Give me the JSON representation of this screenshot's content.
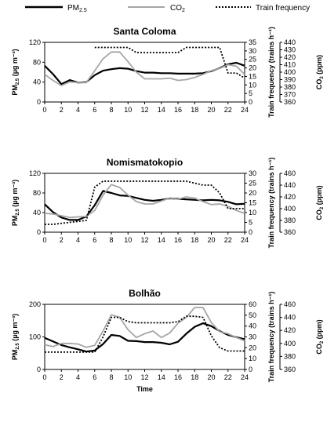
{
  "legend": [
    {
      "label": "PM2.5",
      "color": "#000000",
      "style": "solid"
    },
    {
      "label": "CO2",
      "color": "#a6a6a6",
      "style": "solid"
    },
    {
      "label": "Train frequency",
      "color": "#000000",
      "style": "dotted"
    }
  ],
  "chart_data": [
    {
      "type": "line",
      "title": "Santa Coloma",
      "xlabel": "",
      "ylabel": "PM2.5 (µg m⁻³)",
      "y2label": "Train frequency (trains h⁻¹)",
      "y3label": "CO2 (ppm)",
      "xlim": [
        0,
        24
      ],
      "xticks": [
        0,
        2,
        4,
        6,
        8,
        10,
        12,
        14,
        16,
        18,
        20,
        22,
        24
      ],
      "ylim": [
        0,
        120
      ],
      "yticks": [
        0,
        40,
        80,
        120
      ],
      "y2lim": [
        0,
        35
      ],
      "y2ticks": [
        0,
        5,
        10,
        15,
        20,
        25,
        30,
        35
      ],
      "y3lim": [
        360,
        440
      ],
      "y3ticks": [
        360,
        370,
        380,
        390,
        400,
        410,
        420,
        430,
        440
      ],
      "series": [
        {
          "name": "PM2.5",
          "axis": "left",
          "color": "#000000",
          "style": "solid",
          "x": [
            0,
            1,
            2,
            3,
            4,
            5,
            6,
            7,
            8,
            9,
            10,
            11,
            12,
            13,
            14,
            15,
            16,
            17,
            18,
            19,
            20,
            21,
            22,
            23,
            24
          ],
          "y": [
            73,
            56,
            36,
            44,
            39,
            40,
            54,
            63,
            66,
            68,
            67,
            62,
            59,
            59,
            58,
            58,
            57,
            57,
            57,
            58,
            62,
            68,
            76,
            79,
            73
          ]
        },
        {
          "name": "CO2",
          "axis": "co2",
          "color": "#a6a6a6",
          "style": "solid",
          "x": [
            0,
            1,
            2,
            3,
            4,
            5,
            6,
            7,
            8,
            9,
            10,
            11,
            12,
            13,
            14,
            15,
            16,
            17,
            18,
            19,
            20,
            21,
            22,
            23,
            24
          ],
          "y": [
            397,
            389,
            382,
            387,
            386,
            386,
            402,
            418,
            427,
            427,
            414,
            400,
            391,
            391,
            391,
            392,
            389,
            390,
            393,
            397,
            402,
            405,
            410,
            408,
            397
          ]
        },
        {
          "name": "Train frequency",
          "axis": "right",
          "color": "#000000",
          "style": "dotted",
          "x": [
            6,
            10,
            11,
            16,
            17,
            21,
            22,
            23,
            24
          ],
          "y": [
            32,
            32,
            29,
            29,
            32,
            32,
            17,
            17,
            14
          ]
        }
      ]
    },
    {
      "type": "line",
      "title": "Nomismatokopio",
      "xlabel": "",
      "ylabel": "PM2.5 (µg m⁻³)",
      "y2label": "Train frequency (trains h⁻¹)",
      "y3label": "CO2 (ppm)",
      "xlim": [
        0,
        24
      ],
      "xticks": [
        0,
        2,
        4,
        6,
        8,
        10,
        12,
        14,
        16,
        18,
        20,
        22,
        24
      ],
      "ylim": [
        0,
        120
      ],
      "yticks": [
        0,
        40,
        80,
        120
      ],
      "y2lim": [
        0,
        30
      ],
      "y2ticks": [
        0,
        5,
        10,
        15,
        20,
        25,
        30
      ],
      "y3lim": [
        360,
        460
      ],
      "y3ticks": [
        360,
        380,
        400,
        420,
        440,
        460
      ],
      "series": [
        {
          "name": "PM2.5",
          "axis": "left",
          "color": "#000000",
          "style": "solid",
          "x": [
            0,
            1,
            2,
            3,
            4,
            5,
            6,
            7,
            8,
            9,
            10,
            11,
            12,
            13,
            14,
            15,
            16,
            17,
            18,
            19,
            20,
            21,
            22,
            23,
            24
          ],
          "y": [
            57,
            41,
            30,
            25,
            25,
            32,
            55,
            84,
            80,
            75,
            74,
            70,
            66,
            64,
            66,
            69,
            68,
            67,
            66,
            65,
            66,
            65,
            62,
            57,
            58
          ]
        },
        {
          "name": "CO2",
          "axis": "co2",
          "color": "#a6a6a6",
          "style": "solid",
          "x": [
            0,
            1,
            2,
            3,
            4,
            5,
            6,
            7,
            8,
            9,
            10,
            11,
            12,
            13,
            14,
            15,
            16,
            17,
            18,
            19,
            20,
            21,
            22,
            23,
            24
          ],
          "y": [
            392,
            391,
            388,
            385,
            386,
            387,
            397,
            423,
            441,
            436,
            423,
            412,
            408,
            408,
            413,
            418,
            416,
            420,
            418,
            412,
            407,
            408,
            404,
            397,
            392
          ]
        },
        {
          "name": "Train frequency",
          "axis": "right",
          "color": "#000000",
          "style": "dotted",
          "x": [
            0,
            1,
            5,
            6,
            7,
            17,
            18,
            19,
            20,
            21,
            22,
            24
          ],
          "y": [
            4,
            4,
            6,
            23,
            26,
            26,
            25,
            24,
            24,
            20,
            12,
            12
          ]
        }
      ]
    },
    {
      "type": "line",
      "title": "Bolhão",
      "xlabel": "Time",
      "ylabel": "PM2.5 (µg m⁻³)",
      "y2label": "Train frequency (trains h⁻¹)",
      "y3label": "CO2 (ppm)",
      "xlim": [
        0,
        24
      ],
      "xticks": [
        0,
        2,
        4,
        6,
        8,
        10,
        12,
        14,
        16,
        18,
        20,
        22,
        24
      ],
      "ylim": [
        0,
        200
      ],
      "yticks": [
        0,
        100,
        200
      ],
      "y2lim": [
        0,
        60
      ],
      "y2ticks": [
        0,
        10,
        20,
        30,
        40,
        50,
        60
      ],
      "y3lim": [
        360,
        460
      ],
      "y3ticks": [
        360,
        380,
        400,
        420,
        440,
        460
      ],
      "series": [
        {
          "name": "PM2.5",
          "axis": "left",
          "color": "#000000",
          "style": "solid",
          "x": [
            0,
            1,
            2,
            3,
            4,
            5,
            6,
            7,
            8,
            9,
            10,
            11,
            12,
            13,
            14,
            15,
            16,
            17,
            18,
            19,
            20,
            21,
            22,
            23,
            24
          ],
          "y": [
            97,
            86,
            75,
            68,
            62,
            55,
            58,
            78,
            106,
            103,
            88,
            87,
            84,
            84,
            82,
            77,
            85,
            110,
            131,
            142,
            133,
            118,
            106,
            99,
            93
          ]
        },
        {
          "name": "CO2",
          "axis": "co2",
          "color": "#a6a6a6",
          "style": "solid",
          "x": [
            0,
            1,
            2,
            3,
            4,
            5,
            6,
            7,
            8,
            9,
            10,
            11,
            12,
            13,
            14,
            15,
            16,
            17,
            18,
            19,
            20,
            21,
            22,
            23,
            24
          ],
          "y": [
            398,
            395,
            400,
            400,
            399,
            394,
            397,
            419,
            444,
            440,
            421,
            409,
            415,
            419,
            409,
            416,
            431,
            440,
            455,
            455,
            432,
            418,
            415,
            409,
            404
          ]
        },
        {
          "name": "Train frequency",
          "axis": "right",
          "color": "#000000",
          "style": "dotted",
          "x": [
            0,
            1,
            6,
            7,
            8,
            9,
            10,
            11,
            15,
            16,
            17,
            18,
            19,
            20,
            21,
            22,
            24
          ],
          "y": [
            16,
            16,
            16,
            30,
            48,
            48,
            44,
            43,
            43,
            44,
            49,
            49,
            48,
            31,
            20,
            17,
            17
          ]
        }
      ]
    }
  ]
}
